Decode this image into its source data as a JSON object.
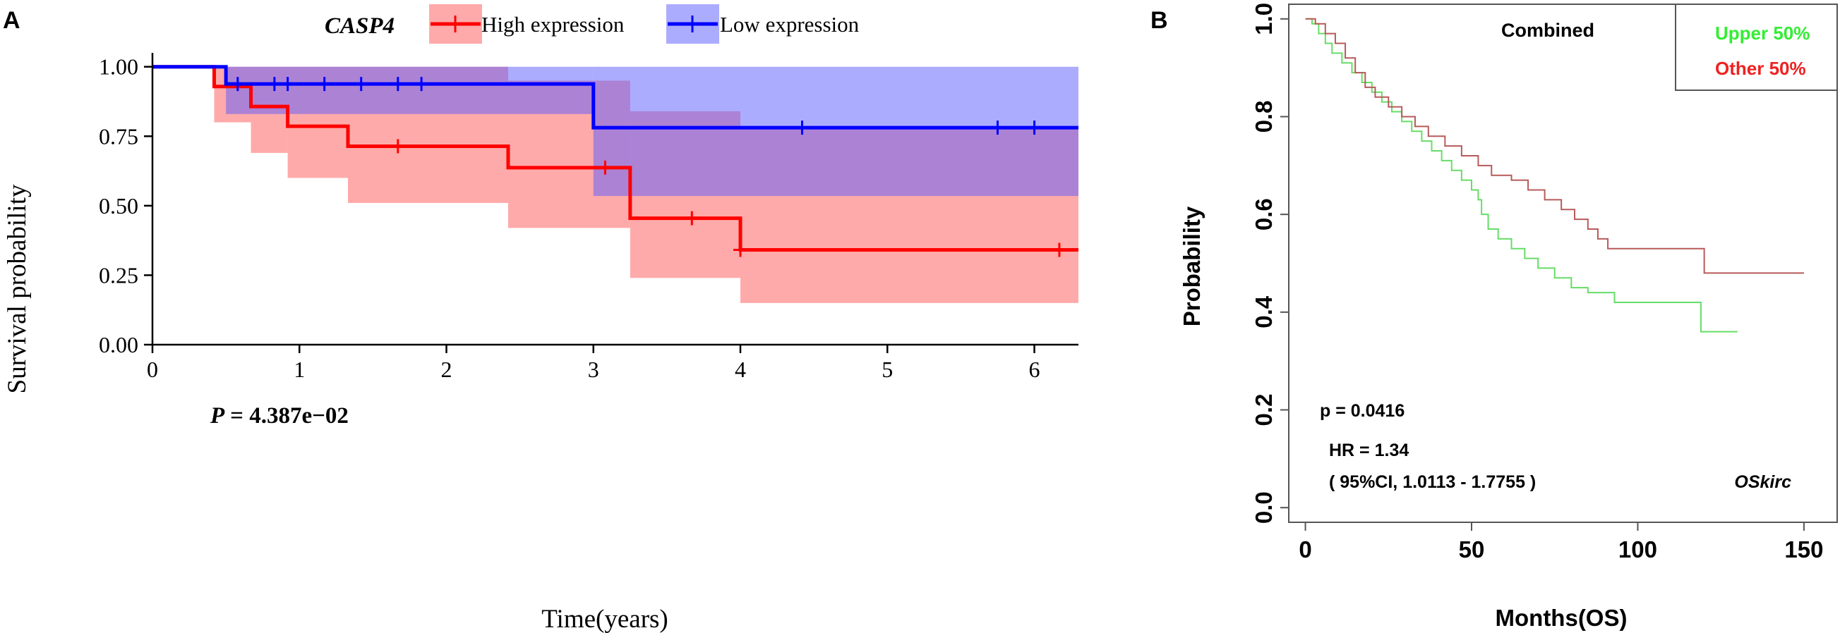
{
  "panels": {
    "a_label": "A",
    "b_label": "B"
  },
  "chart_data": [
    {
      "type": "line",
      "subtype": "kaplan-meier",
      "gene": "CASP4",
      "xlabel": "Time(years)",
      "ylabel": "Survival probability",
      "xlim": [
        0,
        6.3
      ],
      "ylim": [
        0,
        1.05
      ],
      "xticks": [
        "0",
        "1",
        "2",
        "3",
        "4",
        "5",
        "6"
      ],
      "yticks": [
        "0.00",
        "0.25",
        "0.50",
        "0.75",
        "1.00"
      ],
      "legend_title": "CASP4",
      "annotation": {
        "label": "P",
        "value": "= 4.387e−02"
      },
      "series": [
        {
          "name": "High expression",
          "color": "#ff0000",
          "band_color": "#ff5555",
          "steps": [
            [
              0.42,
              0.929
            ],
            [
              0.67,
              0.857
            ],
            [
              0.92,
              0.786
            ],
            [
              1.33,
              0.714
            ],
            [
              2.42,
              0.637
            ],
            [
              3.25,
              0.455
            ],
            [
              4.0,
              0.341
            ]
          ],
          "censored": [
            [
              1.67,
              0.714
            ],
            [
              3.08,
              0.637
            ],
            [
              3.67,
              0.455
            ],
            [
              4.0,
              0.341
            ],
            [
              6.17,
              0.341
            ]
          ],
          "ci_lower": [
            [
              0,
              1.0
            ],
            [
              0.42,
              0.8
            ],
            [
              0.67,
              0.69
            ],
            [
              0.92,
              0.6
            ],
            [
              1.33,
              0.51
            ],
            [
              2.42,
              0.42
            ],
            [
              3.25,
              0.24
            ],
            [
              4.0,
              0.15
            ]
          ],
          "ci_upper": [
            [
              0,
              1.0
            ],
            [
              0.42,
              1.0
            ],
            [
              2.42,
              0.95
            ],
            [
              3.25,
              0.84
            ],
            [
              4.0,
              0.78
            ]
          ]
        },
        {
          "name": "Low expression",
          "color": "#0000ff",
          "band_color": "#5a5aff",
          "steps": [
            [
              0.5,
              0.938
            ],
            [
              3.0,
              0.781
            ]
          ],
          "censored": [
            [
              0.58,
              0.938
            ],
            [
              0.83,
              0.938
            ],
            [
              0.92,
              0.938
            ],
            [
              1.17,
              0.938
            ],
            [
              1.42,
              0.938
            ],
            [
              1.67,
              0.938
            ],
            [
              1.83,
              0.938
            ],
            [
              4.42,
              0.781
            ],
            [
              5.75,
              0.781
            ],
            [
              6.0,
              0.781
            ]
          ],
          "ci_lower": [
            [
              0,
              1.0
            ],
            [
              0.5,
              0.83
            ],
            [
              3.0,
              0.535
            ]
          ],
          "ci_upper": [
            [
              0,
              1.0
            ]
          ]
        }
      ]
    },
    {
      "type": "line",
      "subtype": "kaplan-meier",
      "title": "Combined",
      "xlabel": "Months(OS)",
      "ylabel": "Probability",
      "xlim": [
        -5,
        160
      ],
      "ylim": [
        -0.03,
        1.03
      ],
      "xticks": [
        0,
        50,
        100,
        150
      ],
      "yticks": [
        "0.0",
        "0.2",
        "0.4",
        "0.6",
        "0.8",
        "1.0"
      ],
      "legend": [
        {
          "label": "Upper 50%",
          "color": "#33ee33"
        },
        {
          "label": "Other  50%",
          "color": "#ee2222"
        }
      ],
      "annotations": [
        "p = 0.0416",
        "HR = 1.34",
        "( 95%CI, 1.0113 - 1.7755 )",
        "OSkirc"
      ],
      "series": [
        {
          "name": "Upper 50%",
          "color": "#66dd66",
          "points": [
            [
              0,
              1.0
            ],
            [
              2,
              0.99
            ],
            [
              4,
              0.97
            ],
            [
              6,
              0.95
            ],
            [
              8,
              0.93
            ],
            [
              11,
              0.91
            ],
            [
              14,
              0.89
            ],
            [
              17,
              0.87
            ],
            [
              20,
              0.85
            ],
            [
              23,
              0.83
            ],
            [
              26,
              0.81
            ],
            [
              29,
              0.79
            ],
            [
              32,
              0.77
            ],
            [
              35,
              0.75
            ],
            [
              38,
              0.73
            ],
            [
              41,
              0.71
            ],
            [
              44,
              0.69
            ],
            [
              47,
              0.67
            ],
            [
              50,
              0.65
            ],
            [
              52,
              0.63
            ],
            [
              53,
              0.6
            ],
            [
              55,
              0.57
            ],
            [
              58,
              0.55
            ],
            [
              62,
              0.53
            ],
            [
              66,
              0.51
            ],
            [
              70,
              0.49
            ],
            [
              75,
              0.47
            ],
            [
              80,
              0.45
            ],
            [
              85,
              0.44
            ],
            [
              93,
              0.42
            ],
            [
              119,
              0.42
            ],
            [
              119,
              0.36
            ],
            [
              130,
              0.36
            ]
          ]
        },
        {
          "name": "Other 50%",
          "color": "#b85a5a",
          "points": [
            [
              0,
              1.0
            ],
            [
              3,
              0.99
            ],
            [
              6,
              0.97
            ],
            [
              9,
              0.95
            ],
            [
              12,
              0.92
            ],
            [
              15,
              0.89
            ],
            [
              18,
              0.86
            ],
            [
              21,
              0.84
            ],
            [
              25,
              0.82
            ],
            [
              29,
              0.8
            ],
            [
              33,
              0.78
            ],
            [
              37,
              0.76
            ],
            [
              42,
              0.74
            ],
            [
              47,
              0.72
            ],
            [
              52,
              0.7
            ],
            [
              56,
              0.68
            ],
            [
              62,
              0.67
            ],
            [
              67,
              0.65
            ],
            [
              72,
              0.63
            ],
            [
              77,
              0.61
            ],
            [
              81,
              0.59
            ],
            [
              85,
              0.57
            ],
            [
              88,
              0.55
            ],
            [
              91,
              0.53
            ],
            [
              120,
              0.53
            ],
            [
              120,
              0.48
            ],
            [
              150,
              0.48
            ]
          ]
        }
      ]
    }
  ]
}
